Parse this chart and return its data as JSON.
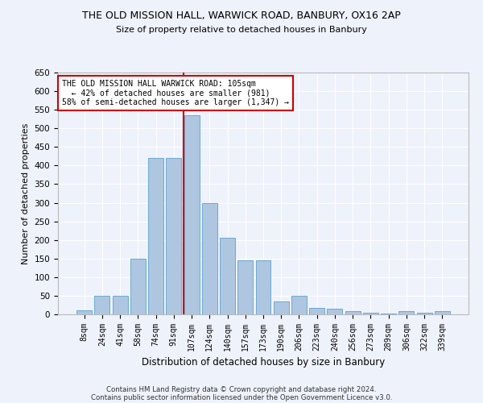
{
  "title1": "THE OLD MISSION HALL, WARWICK ROAD, BANBURY, OX16 2AP",
  "title2": "Size of property relative to detached houses in Banbury",
  "xlabel": "Distribution of detached houses by size in Banbury",
  "ylabel": "Number of detached properties",
  "footer1": "Contains HM Land Registry data © Crown copyright and database right 2024.",
  "footer2": "Contains public sector information licensed under the Open Government Licence v3.0.",
  "categories": [
    "8sqm",
    "24sqm",
    "41sqm",
    "58sqm",
    "74sqm",
    "91sqm",
    "107sqm",
    "124sqm",
    "140sqm",
    "157sqm",
    "173sqm",
    "190sqm",
    "206sqm",
    "223sqm",
    "240sqm",
    "256sqm",
    "273sqm",
    "289sqm",
    "306sqm",
    "322sqm",
    "339sqm"
  ],
  "values": [
    10,
    50,
    50,
    150,
    420,
    420,
    535,
    300,
    205,
    145,
    145,
    35,
    50,
    18,
    15,
    8,
    5,
    3,
    8,
    5,
    8
  ],
  "bar_color": "#aec6e0",
  "bar_edge_color": "#6aaad4",
  "background_color": "#eef2fb",
  "grid_color": "#ffffff",
  "vline_color": "#cc0000",
  "annotation_text": "THE OLD MISSION HALL WARWICK ROAD: 105sqm\n  ← 42% of detached houses are smaller (981)\n58% of semi-detached houses are larger (1,347) →",
  "annotation_box_color": "#ffffff",
  "annotation_box_edge": "#cc0000",
  "ylim": [
    0,
    650
  ],
  "yticks": [
    0,
    50,
    100,
    150,
    200,
    250,
    300,
    350,
    400,
    450,
    500,
    550,
    600,
    650
  ]
}
